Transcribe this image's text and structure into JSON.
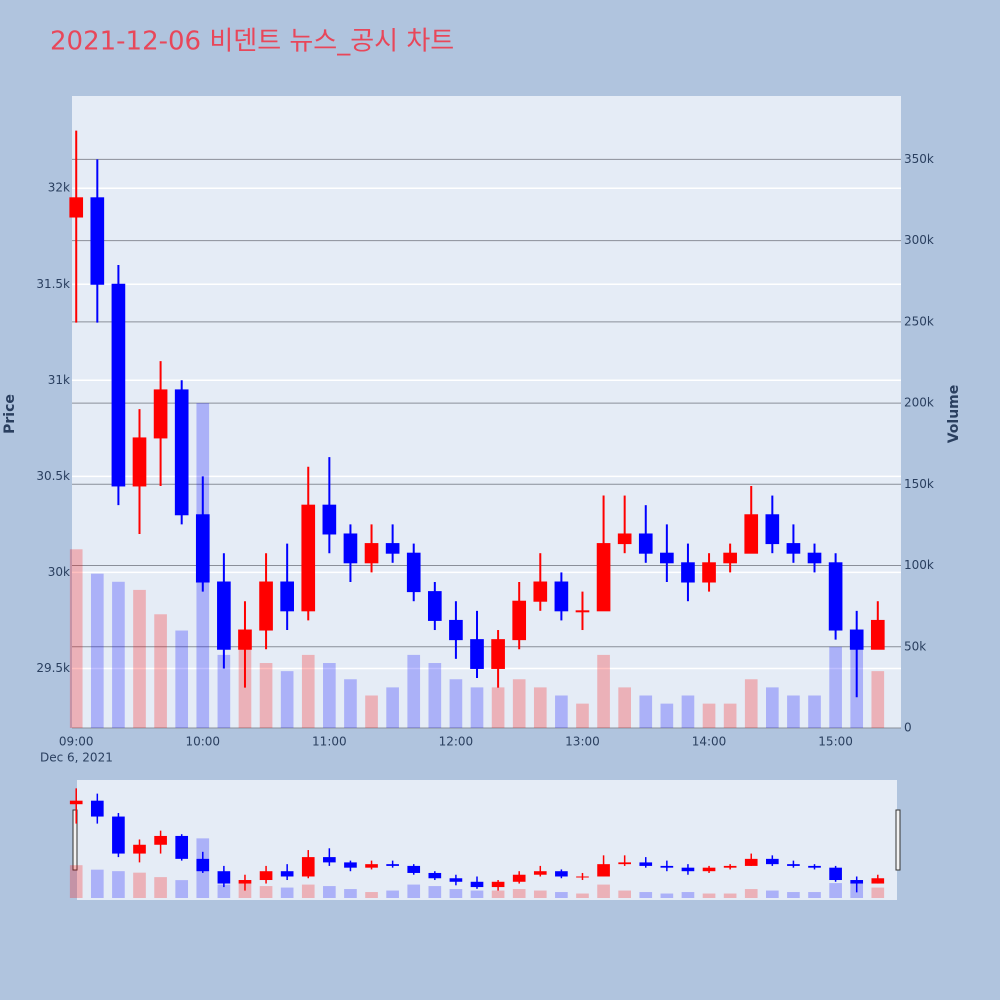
{
  "chart_data": {
    "type": "candlestick",
    "title": "2021-12-06 비덴트 뉴스_공시 차트",
    "y_title": "Price",
    "y2_title": "Volume",
    "x_date_label": "Dec 6, 2021",
    "x": [
      "09:00",
      "09:10",
      "09:20",
      "09:30",
      "09:40",
      "09:50",
      "10:00",
      "10:10",
      "10:20",
      "10:30",
      "10:40",
      "10:50",
      "11:00",
      "11:10",
      "11:20",
      "11:30",
      "11:40",
      "11:50",
      "12:00",
      "12:10",
      "12:20",
      "12:30",
      "12:40",
      "12:50",
      "13:00",
      "13:10",
      "13:20",
      "13:30",
      "13:40",
      "13:50",
      "14:00",
      "14:10",
      "14:20",
      "14:30",
      "14:40",
      "14:50",
      "15:00",
      "15:10",
      "15:20"
    ],
    "open": [
      31850,
      31950,
      31500,
      30450,
      30700,
      30950,
      30300,
      29950,
      29600,
      29700,
      29950,
      29800,
      30350,
      30200,
      30050,
      30150,
      30100,
      29900,
      29750,
      29650,
      29500,
      29650,
      29850,
      29950,
      29800,
      29800,
      30150,
      30200,
      30100,
      30050,
      29950,
      30050,
      30100,
      30300,
      30150,
      30100,
      30050,
      29700,
      29600
    ],
    "high": [
      32300,
      32150,
      31600,
      30850,
      31100,
      31000,
      30500,
      30100,
      29850,
      30100,
      30150,
      30550,
      30600,
      30250,
      30250,
      30250,
      30150,
      29950,
      29850,
      29800,
      29700,
      29950,
      30100,
      30000,
      29900,
      30400,
      30400,
      30350,
      30250,
      30150,
      30100,
      30150,
      30450,
      30400,
      30250,
      30150,
      30100,
      29800,
      29850
    ],
    "low": [
      31300,
      31300,
      30350,
      30200,
      30450,
      30250,
      29900,
      29500,
      29400,
      29600,
      29700,
      29750,
      30100,
      29950,
      30000,
      30050,
      29850,
      29700,
      29550,
      29450,
      29400,
      29600,
      29800,
      29750,
      29700,
      29800,
      30100,
      30050,
      29950,
      29850,
      29900,
      30000,
      30100,
      30100,
      30050,
      30000,
      29650,
      29350,
      29600
    ],
    "close": [
      31950,
      31500,
      30450,
      30700,
      30950,
      30300,
      29950,
      29600,
      29700,
      29950,
      29800,
      30350,
      30200,
      30050,
      30150,
      30100,
      29900,
      29750,
      29650,
      29500,
      29650,
      29850,
      29950,
      29800,
      29800,
      30150,
      30200,
      30100,
      30050,
      29950,
      30050,
      30100,
      30300,
      30150,
      30100,
      30050,
      29700,
      29600,
      29750
    ],
    "volume": [
      110000,
      95000,
      90000,
      85000,
      70000,
      60000,
      200000,
      45000,
      60000,
      40000,
      35000,
      45000,
      40000,
      30000,
      20000,
      25000,
      45000,
      40000,
      30000,
      25000,
      25000,
      30000,
      25000,
      20000,
      15000,
      45000,
      25000,
      20000,
      15000,
      20000,
      15000,
      15000,
      30000,
      25000,
      20000,
      20000,
      50000,
      60000,
      35000
    ],
    "increasing_color": "#ff0000",
    "decreasing_color": "#0000ff",
    "xlim": [
      "08:58",
      "15:31"
    ],
    "xticks": [
      "09:00",
      "10:00",
      "11:00",
      "12:00",
      "13:00",
      "14:00",
      "15:00"
    ],
    "ylim": [
      29190,
      32480
    ],
    "yticks": [
      {
        "value": 29500,
        "label": "29.5k"
      },
      {
        "value": 30000,
        "label": "30k"
      },
      {
        "value": 30500,
        "label": "30.5k"
      },
      {
        "value": 31000,
        "label": "31k"
      },
      {
        "value": 31500,
        "label": "31.5k"
      },
      {
        "value": 32000,
        "label": "32k"
      }
    ],
    "y2lim": [
      0,
      389000
    ],
    "y2ticks": [
      0,
      {
        "value": 50000,
        "label": "50k"
      },
      {
        "value": 100000,
        "label": "100k"
      },
      {
        "value": 150000,
        "label": "150k"
      },
      {
        "value": 200000,
        "label": "200k"
      },
      {
        "value": 250000,
        "label": "250k"
      },
      {
        "value": 300000,
        "label": "300k"
      },
      {
        "value": 350000,
        "label": "350k"
      }
    ],
    "rangeslider": true
  }
}
